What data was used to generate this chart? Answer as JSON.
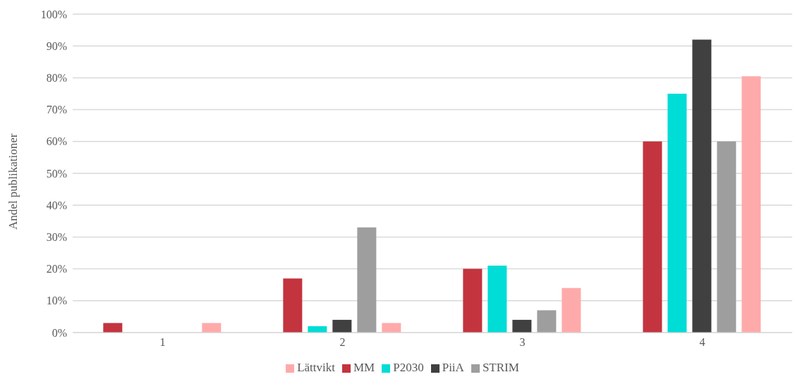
{
  "chart_data": {
    "type": "bar",
    "ylabel": "Andel publikationer",
    "categories": [
      "1",
      "2",
      "3",
      "4"
    ],
    "series": [
      {
        "name": "MM",
        "color": "#c3343f",
        "values": [
          3,
          17,
          20,
          60
        ]
      },
      {
        "name": "P2030",
        "color": "#00dcd6",
        "values": [
          0,
          2,
          21,
          75
        ]
      },
      {
        "name": "PiiA",
        "color": "#404040",
        "values": [
          0,
          4,
          4,
          92
        ]
      },
      {
        "name": "STRIM",
        "color": "#9e9e9e",
        "values": [
          0,
          33,
          7,
          60
        ]
      },
      {
        "name": "Lättvikt",
        "color": "#ffaaaa",
        "values": [
          3,
          3,
          14,
          80.5
        ]
      }
    ],
    "ylim": [
      0,
      100
    ],
    "yticks": [
      {
        "value": 0,
        "label": "0%"
      },
      {
        "value": 10,
        "label": "10%"
      },
      {
        "value": 20,
        "label": "20%"
      },
      {
        "value": 30,
        "label": "30%"
      },
      {
        "value": 40,
        "label": "40%"
      },
      {
        "value": 50,
        "label": "50%"
      },
      {
        "value": 60,
        "label": "60%"
      },
      {
        "value": 70,
        "label": "70%"
      },
      {
        "value": 80,
        "label": "80%"
      },
      {
        "value": 90,
        "label": "90%"
      },
      {
        "value": 100,
        "label": "100%"
      }
    ],
    "grid": "y",
    "legend": "bottom"
  }
}
